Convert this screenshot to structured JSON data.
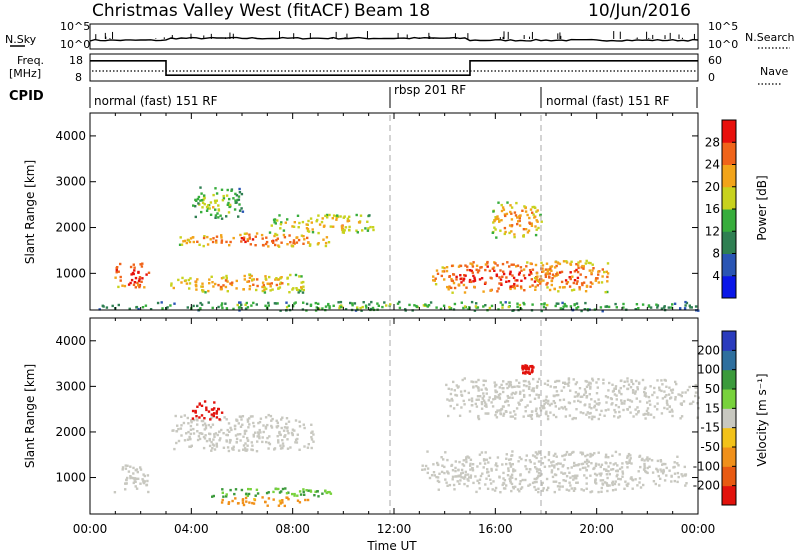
{
  "header": {
    "title": "Christmas Valley West (fitACF)",
    "beam": "Beam 18",
    "date": "10/Jun/2016"
  },
  "status_panels": {
    "nsky_label": "N.Sky",
    "nsky_ticks": [
      "10^5",
      "10^0"
    ],
    "nsearch_label": "N.Search",
    "nsearch_ticks": [
      "10^5",
      "10^0"
    ],
    "freq_label_line1": "Freq.",
    "freq_label_line2": "[MHz]",
    "freq_ticks": [
      "18",
      "8"
    ],
    "nave_label": "Nave",
    "nave_ticks": [
      "60",
      "0"
    ],
    "cpid_label": "CPID",
    "cpid_segments": [
      {
        "name": "normal (fast) 151 RF",
        "start": 0,
        "end": 12
      },
      {
        "name": "rbsp 201 RF",
        "start": 12,
        "end": 18
      },
      {
        "name": "normal (fast) 151 RF",
        "start": 18,
        "end": 24
      }
    ],
    "freq_steps": [
      {
        "start": 0,
        "end": 3,
        "value": 16
      },
      {
        "start": 3,
        "end": 15,
        "value": 10
      },
      {
        "start": 15,
        "end": 24,
        "value": 16
      }
    ]
  },
  "axes": {
    "xlabel": "Time UT",
    "xticks": [
      "00:00",
      "04:00",
      "08:00",
      "12:00",
      "16:00",
      "20:00",
      "00:00"
    ],
    "ylabel": "Slant Range [km]",
    "yticks": [
      "1000",
      "2000",
      "3000",
      "4000"
    ]
  },
  "power_colorbar": {
    "label": "Power [dB]",
    "ticks": [
      "4",
      "8",
      "12",
      "16",
      "20",
      "24",
      "28"
    ],
    "colors": [
      "#0a17e8",
      "#2a55b4",
      "#2f7f52",
      "#37ad3c",
      "#c8d21e",
      "#f2a41a",
      "#f0641a",
      "#e8100c"
    ]
  },
  "velocity_colorbar": {
    "label": "Velocity [m s⁻¹]",
    "ticks": [
      "200",
      "100",
      "50",
      "15",
      "-15",
      "-50",
      "-100",
      "-200"
    ],
    "colors": [
      "#2a3bbd",
      "#2e6f9e",
      "#3b9a3b",
      "#78d23c",
      "#c8c8c0",
      "#f2c21a",
      "#f0901a",
      "#e85a12",
      "#e2120c"
    ]
  },
  "chart_data": {
    "type": "heatmap",
    "xlabel": "Time UT",
    "ylabel": "Slant Range [km]",
    "xlim": [
      0,
      24
    ],
    "ylim": [
      200,
      4500
    ],
    "panels": [
      {
        "name": "Power",
        "units": "dB",
        "range": [
          0,
          30
        ],
        "patches": [
          {
            "x": [
              0.9,
              2.3
            ],
            "y": [
              700,
              1300
            ],
            "value": 26
          },
          {
            "x": [
              3.5,
              9.5
            ],
            "y": [
              1600,
              1900
            ],
            "value": 22
          },
          {
            "x": [
              7.0,
              11.3
            ],
            "y": [
              1900,
              2300
            ],
            "value": 18
          },
          {
            "x": [
              3.0,
              8.5
            ],
            "y": [
              600,
              1000
            ],
            "value": 20
          },
          {
            "x": [
              13.5,
              18.5
            ],
            "y": [
              600,
              1300
            ],
            "value": 24
          },
          {
            "x": [
              15.8,
              17.8
            ],
            "y": [
              1800,
              2600
            ],
            "value": 20
          },
          {
            "x": [
              17.5,
              20.5
            ],
            "y": [
              600,
              1300
            ],
            "value": 22
          },
          {
            "x": [
              4.0,
              6.0
            ],
            "y": [
              2200,
              2900
            ],
            "value": 14
          },
          {
            "x": [
              0,
              24
            ],
            "y": [
              200,
              400
            ],
            "value": 12
          }
        ]
      },
      {
        "name": "Velocity",
        "units": "m s^-1",
        "range": [
          -200,
          200
        ],
        "patches": [
          {
            "x": [
              0.9,
              2.3
            ],
            "y": [
              700,
              1300
            ],
            "value": 0
          },
          {
            "x": [
              3.2,
              8.8
            ],
            "y": [
              1600,
              2400
            ],
            "value": 0
          },
          {
            "x": [
              4.5,
              9.5
            ],
            "y": [
              600,
              800
            ],
            "value": 30
          },
          {
            "x": [
              5.0,
              8.8
            ],
            "y": [
              400,
              600
            ],
            "value": -45
          },
          {
            "x": [
              13.0,
              23.5
            ],
            "y": [
              700,
              1600
            ],
            "value": 0
          },
          {
            "x": [
              4.0,
              5.2
            ],
            "y": [
              2300,
              2700
            ],
            "value": -200
          },
          {
            "x": [
              14.0,
              24.0
            ],
            "y": [
              2300,
              3200
            ],
            "value": 0
          },
          {
            "x": [
              17.0,
              17.5
            ],
            "y": [
              3300,
              3500
            ],
            "value": -200
          }
        ]
      }
    ]
  }
}
